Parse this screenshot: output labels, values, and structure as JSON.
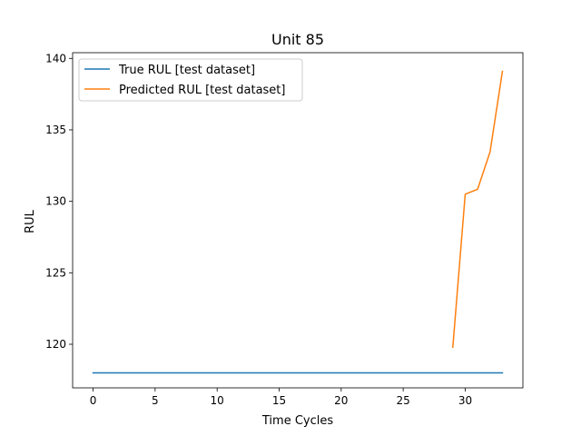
{
  "chart_data": {
    "type": "line",
    "title": "Unit 85",
    "xlabel": "Time Cycles",
    "ylabel": "RUL",
    "xlim": [
      -1.65,
      34.65
    ],
    "ylim": [
      116.95,
      140.4
    ],
    "xticks": [
      0,
      5,
      10,
      15,
      20,
      25,
      30
    ],
    "yticks": [
      120,
      125,
      130,
      135,
      140
    ],
    "grid": false,
    "legend_position": "top-left",
    "series": [
      {
        "name": "True RUL [test dataset]",
        "color": "#1f77b4",
        "x": [
          0,
          33
        ],
        "y": [
          118,
          118
        ]
      },
      {
        "name": "Predicted RUL [test dataset]",
        "color": "#ff7f0e",
        "x": [
          29,
          30,
          31,
          32,
          33
        ],
        "y": [
          119.8,
          130.5,
          130.85,
          133.45,
          139.1
        ]
      }
    ]
  }
}
